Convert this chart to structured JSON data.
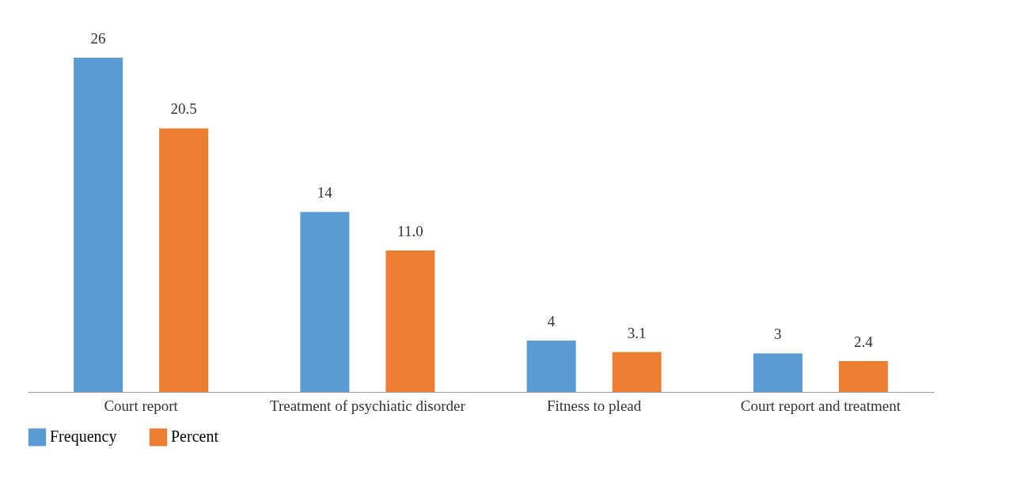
{
  "chart_data": {
    "type": "bar",
    "categories": [
      "Court report",
      "Treatment of psychiatic disorder",
      "Fitness to plead",
      "Court report and treatment"
    ],
    "series": [
      {
        "name": "Frequency",
        "color": "#5b9bd5",
        "values": [
          26,
          14,
          4,
          3
        ],
        "value_labels": [
          "26",
          "14",
          "4",
          "3"
        ]
      },
      {
        "name": "Percent",
        "color": "#ed7d31",
        "values": [
          20.5,
          11.0,
          3.1,
          2.4
        ],
        "value_labels": [
          "20.5",
          "11.0",
          "3.1",
          "2.4"
        ]
      }
    ],
    "data_labels": true,
    "legend": "bottom",
    "grid": false
  }
}
